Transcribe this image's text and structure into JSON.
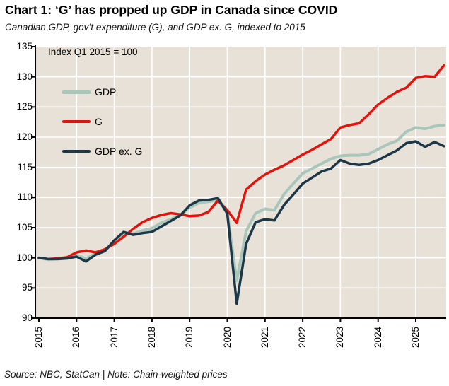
{
  "header": {
    "title": "Chart 1: ‘G’ has propped up GDP in Canada since COVID",
    "subtitle": "Canadian GDP, gov’t expenditure (G), and GDP ex. G, indexed to 2015"
  },
  "annotation": "Index Q1 2015 = 100",
  "footer": "Source: NBC, StatCan | Note: Chain-weighted prices",
  "colors": {
    "gdp": "#a8c6ba",
    "g": "#e3120b",
    "gdp_ex_g": "#1c3848",
    "plot_bg": "#e8e1d8",
    "grid": "#ffffff",
    "axis": "#000000"
  },
  "chart_data": {
    "type": "line",
    "title": "Chart 1: ‘G’ has propped up GDP in Canada since COVID",
    "subtitle": "Canadian GDP, gov’t expenditure (G), and GDP ex. G, indexed to 2015",
    "note": "Index Q1 2015 = 100",
    "x_unit": "quarter",
    "x_start": 2015.0,
    "x_step": 0.25,
    "x_tick_years": [
      "2015",
      "2016",
      "2017",
      "2018",
      "2019",
      "2020",
      "2021",
      "2022",
      "2023",
      "2024",
      "2025"
    ],
    "y_ticks": [
      90,
      95,
      100,
      105,
      110,
      115,
      120,
      125,
      130,
      135
    ],
    "ylim": [
      90,
      135
    ],
    "xlim": [
      2015.0,
      2025.85
    ],
    "grid": true,
    "legend_position": "top-left-inside",
    "legend": [
      "GDP",
      "G",
      "GDP ex. G"
    ],
    "series": [
      {
        "name": "GDP",
        "color_key": "gdp",
        "values": [
          100,
          99.7,
          99.8,
          99.9,
          100.4,
          99.9,
          100.7,
          101.2,
          102.7,
          104.1,
          104.0,
          104.5,
          104.9,
          105.8,
          106.4,
          107.1,
          108.3,
          109.1,
          109.3,
          109.6,
          107.5,
          96.2,
          104.4,
          107.4,
          108.1,
          107.9,
          110.5,
          112.3,
          114.0,
          114.8,
          115.6,
          116.4,
          116.9,
          117.0,
          117.0,
          117.2,
          118.0,
          118.8,
          119.4,
          120.9,
          121.6,
          121.4,
          121.8,
          122.0
        ]
      },
      {
        "name": "G",
        "color_key": "g",
        "values": [
          100,
          99.8,
          99.9,
          100.1,
          100.9,
          101.2,
          100.9,
          101.4,
          102.3,
          103.5,
          104.8,
          105.9,
          106.6,
          107.1,
          107.4,
          107.2,
          106.9,
          107.0,
          107.6,
          109.5,
          107.9,
          105.8,
          111.3,
          112.7,
          113.8,
          114.6,
          115.3,
          116.2,
          117.1,
          117.9,
          118.8,
          119.7,
          121.6,
          122.0,
          122.3,
          123.8,
          125.4,
          126.5,
          127.5,
          128.2,
          129.8,
          130.1,
          130.0,
          131.9
        ]
      },
      {
        "name": "GDP ex. G",
        "color_key": "gdp_ex_g",
        "values": [
          100,
          99.8,
          99.8,
          99.9,
          100.2,
          99.4,
          100.5,
          101.1,
          102.9,
          104.3,
          103.8,
          104.1,
          104.3,
          105.2,
          106.1,
          107.0,
          108.7,
          109.5,
          109.6,
          109.9,
          107.3,
          92.4,
          102.3,
          105.9,
          106.4,
          106.2,
          108.7,
          110.5,
          112.3,
          113.3,
          114.3,
          114.8,
          116.2,
          115.6,
          115.4,
          115.6,
          116.2,
          117.0,
          117.8,
          119.0,
          119.3,
          118.4,
          119.2,
          118.5
        ]
      }
    ]
  }
}
